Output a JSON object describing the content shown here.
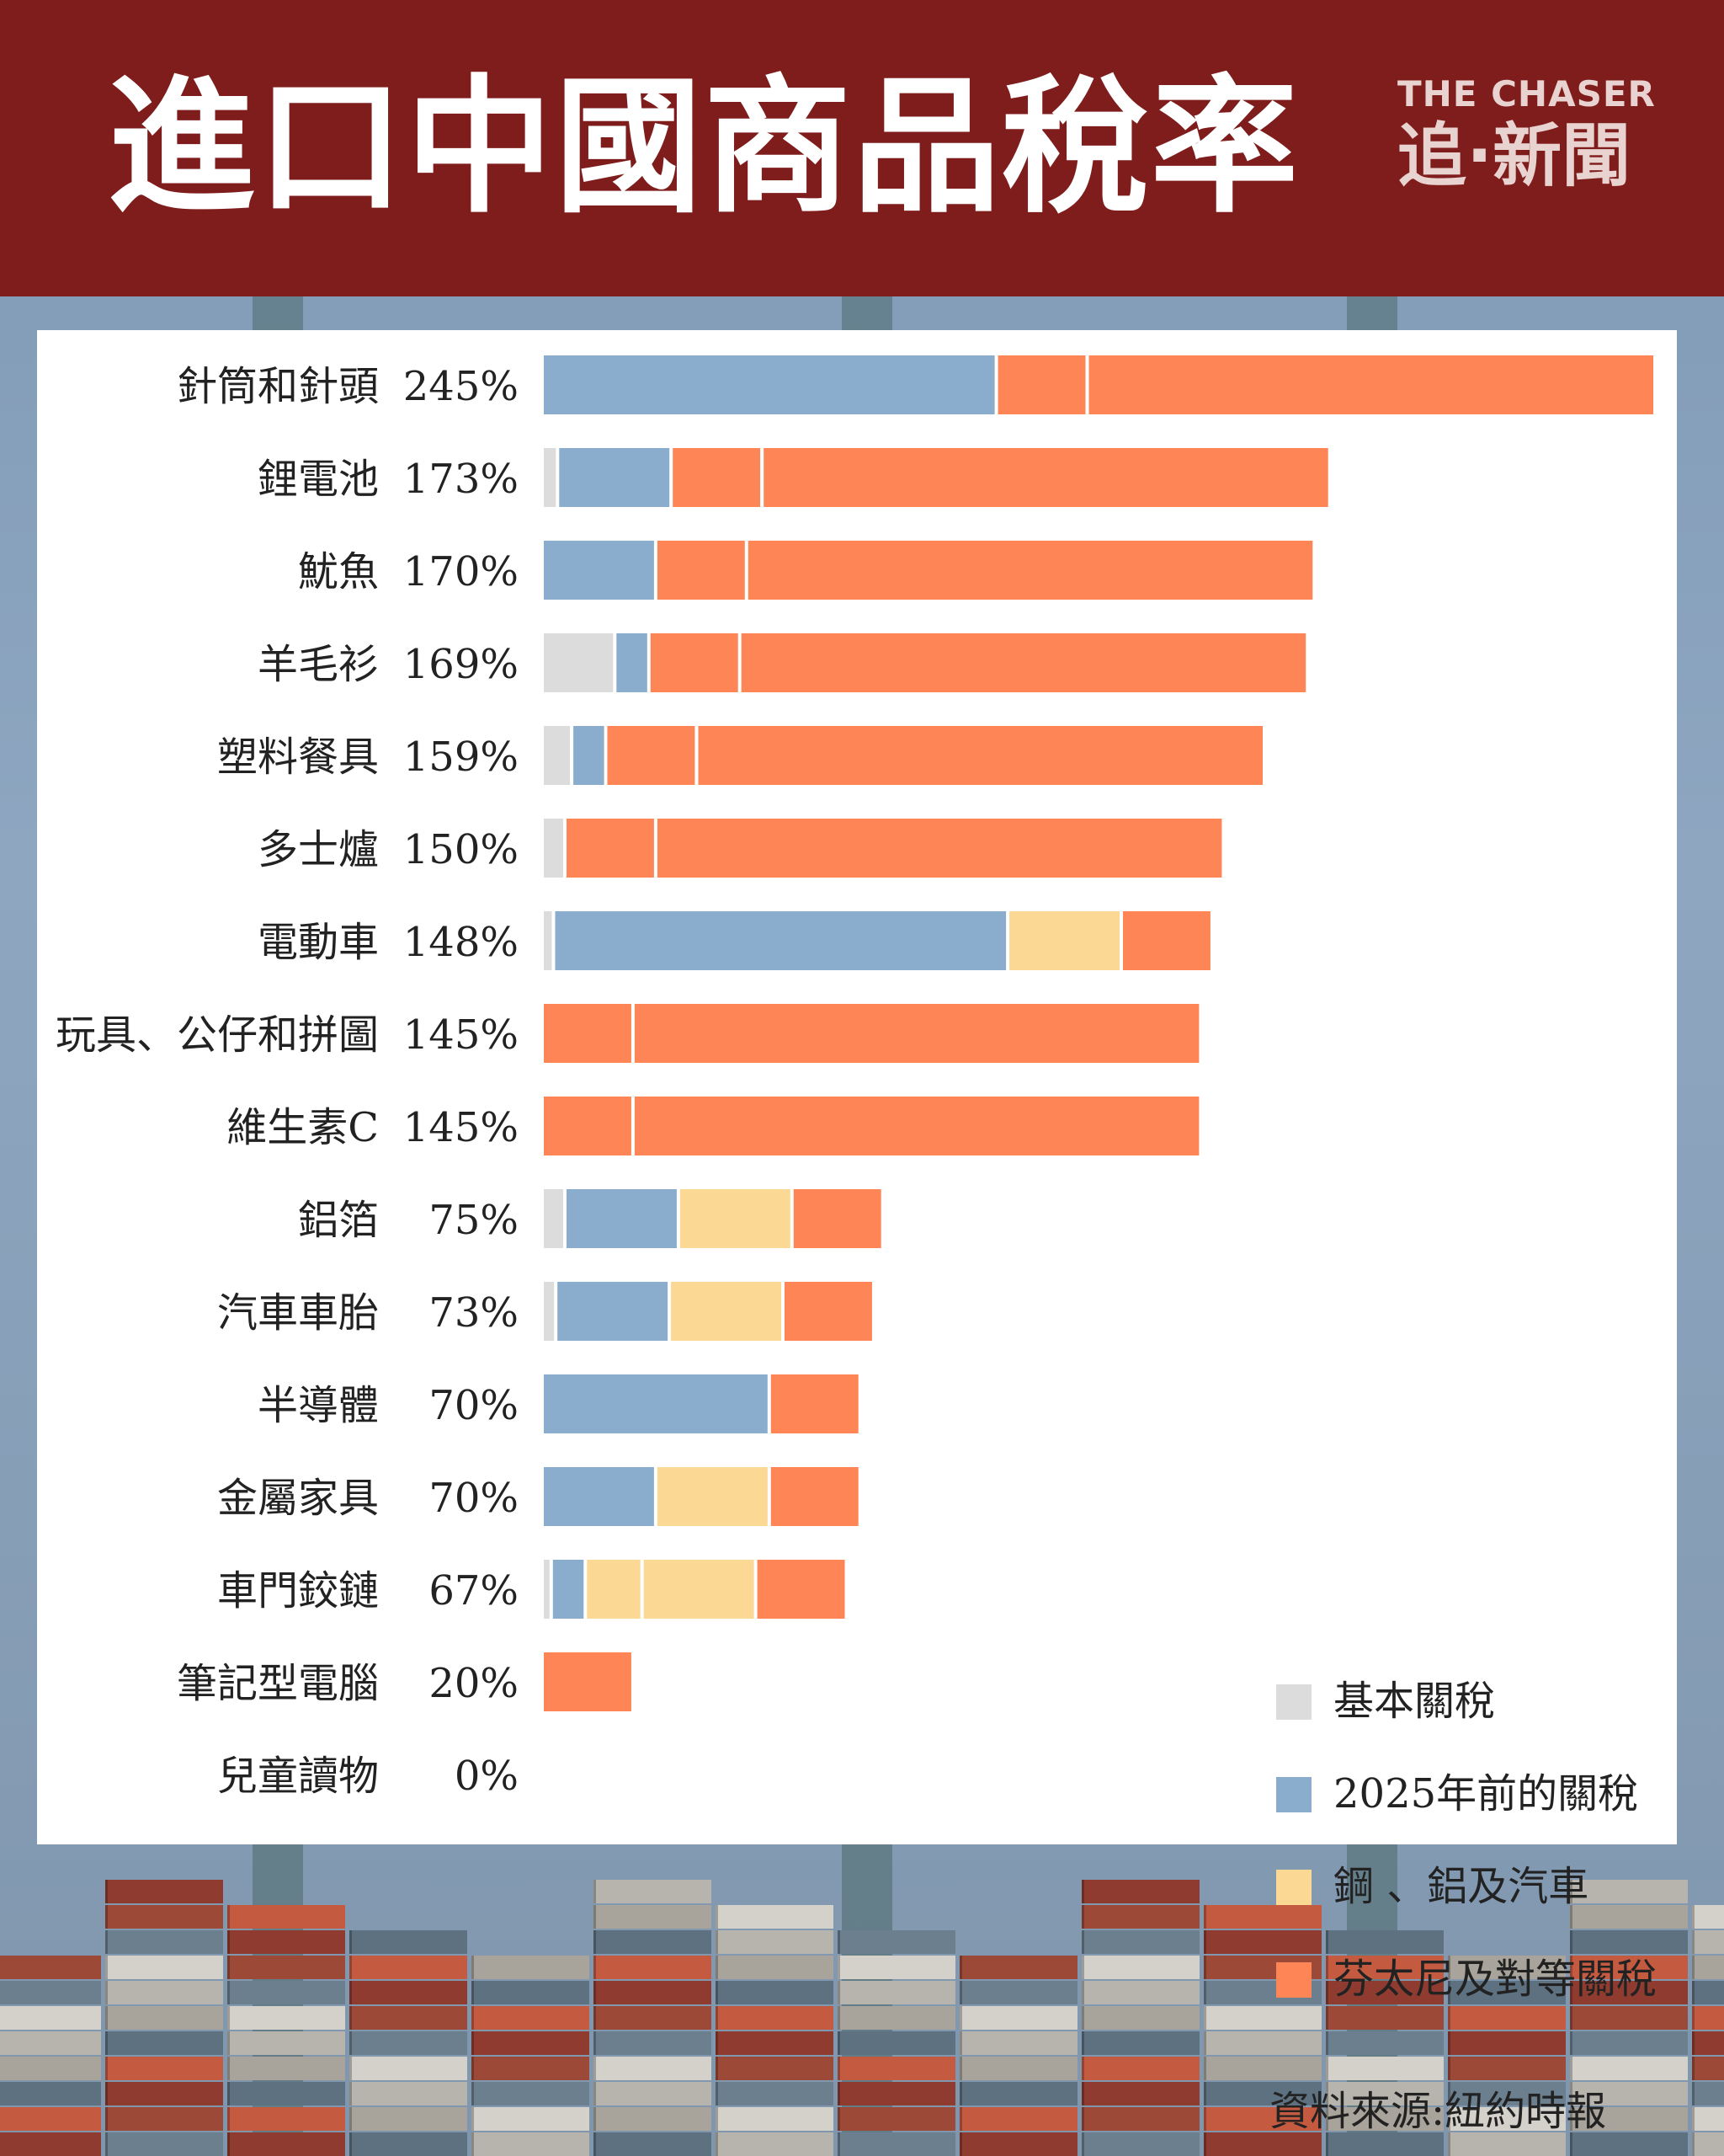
{
  "header": {
    "title": "進口中國商品稅率",
    "logo_top": "THE CHASER",
    "logo_bottom": "追·新聞"
  },
  "colors": {
    "header_bg": "#7f1d1d",
    "base": "#dcdcdc",
    "pre2025": "#8aaccd",
    "steel": "#fbd995",
    "fentanyl": "#fe8555"
  },
  "source": "資料來源:紐約時報",
  "chart_data": {
    "type": "bar",
    "orientation": "horizontal",
    "stacked": true,
    "legend_position": "bottom-right",
    "grid": false,
    "xlim": [
      0,
      245
    ],
    "categories": [
      "針筒和針頭",
      "鋰電池",
      "魷魚",
      "羊毛衫",
      "塑料餐具",
      "多士爐",
      "電動車",
      "玩具、公仔和拼圖",
      "維生素C",
      "鋁箔",
      "汽車車胎",
      "半導體",
      "金屬家具",
      "車門鉸鏈",
      "筆記型電腦",
      "兒童讀物"
    ],
    "totals": [
      "245%",
      "173%",
      "170%",
      "169%",
      "159%",
      "150%",
      "148%",
      "145%",
      "145%",
      "75%",
      "73%",
      "70%",
      "70%",
      "67%",
      "20%",
      "0%"
    ],
    "legend": [
      {
        "key": "base",
        "label": "基本關稅"
      },
      {
        "key": "pre2025",
        "label": "2025年前的關稅"
      },
      {
        "key": "steel",
        "label": "鋼 、鋁及汽車"
      },
      {
        "key": "fentanyl",
        "label": "芬太尼及對等關稅"
      }
    ],
    "bars": [
      [
        {
          "k": "pre2025",
          "v": 100
        },
        {
          "k": "fentanyl",
          "v": 20
        },
        {
          "k": "fentanyl",
          "v": 125
        }
      ],
      [
        {
          "k": "base",
          "v": 3.4
        },
        {
          "k": "pre2025",
          "v": 25
        },
        {
          "k": "fentanyl",
          "v": 20
        },
        {
          "k": "fentanyl",
          "v": 125
        }
      ],
      [
        {
          "k": "pre2025",
          "v": 25
        },
        {
          "k": "fentanyl",
          "v": 20
        },
        {
          "k": "fentanyl",
          "v": 125
        }
      ],
      [
        {
          "k": "base",
          "v": 16
        },
        {
          "k": "pre2025",
          "v": 7.5
        },
        {
          "k": "fentanyl",
          "v": 20
        },
        {
          "k": "fentanyl",
          "v": 125
        }
      ],
      [
        {
          "k": "base",
          "v": 6.5
        },
        {
          "k": "pre2025",
          "v": 7.5
        },
        {
          "k": "fentanyl",
          "v": 20
        },
        {
          "k": "fentanyl",
          "v": 125
        }
      ],
      [
        {
          "k": "base",
          "v": 5
        },
        {
          "k": "fentanyl",
          "v": 20
        },
        {
          "k": "fentanyl",
          "v": 125
        }
      ],
      [
        {
          "k": "base",
          "v": 2.5
        },
        {
          "k": "pre2025",
          "v": 100
        },
        {
          "k": "steel",
          "v": 25
        },
        {
          "k": "fentanyl",
          "v": 20
        }
      ],
      [
        {
          "k": "fentanyl",
          "v": 20
        },
        {
          "k": "fentanyl",
          "v": 125
        }
      ],
      [
        {
          "k": "fentanyl",
          "v": 20
        },
        {
          "k": "fentanyl",
          "v": 125
        }
      ],
      [
        {
          "k": "base",
          "v": 5
        },
        {
          "k": "pre2025",
          "v": 25
        },
        {
          "k": "steel",
          "v": 25
        },
        {
          "k": "fentanyl",
          "v": 20
        }
      ],
      [
        {
          "k": "base",
          "v": 3
        },
        {
          "k": "pre2025",
          "v": 25
        },
        {
          "k": "steel",
          "v": 25
        },
        {
          "k": "fentanyl",
          "v": 20
        }
      ],
      [
        {
          "k": "pre2025",
          "v": 50
        },
        {
          "k": "fentanyl",
          "v": 20
        }
      ],
      [
        {
          "k": "pre2025",
          "v": 25
        },
        {
          "k": "steel",
          "v": 25
        },
        {
          "k": "fentanyl",
          "v": 20
        }
      ],
      [
        {
          "k": "base",
          "v": 2
        },
        {
          "k": "pre2025",
          "v": 7.5
        },
        {
          "k": "steel",
          "v": 12.5
        },
        {
          "k": "steel",
          "v": 25
        },
        {
          "k": "fentanyl",
          "v": 20
        }
      ],
      [
        {
          "k": "fentanyl",
          "v": 20
        }
      ],
      []
    ]
  }
}
